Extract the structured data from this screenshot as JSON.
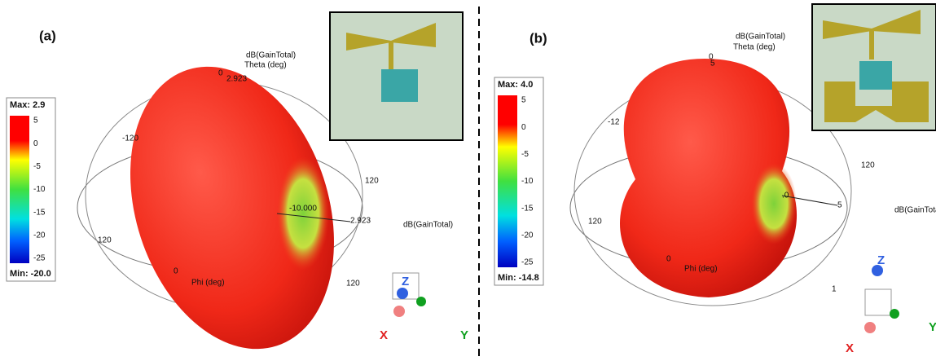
{
  "panels": [
    {
      "label": "(a)",
      "legend": {
        "max": "Max: 2.9",
        "ticks": [
          "5",
          "0",
          "-5",
          "-10",
          "-15",
          "-20",
          "-25"
        ],
        "min": "Min: -20.0"
      },
      "labels": [
        "dB(GainTotal)",
        "Theta (deg)",
        "0",
        "2.923",
        "-120",
        "120",
        "-10.000",
        "2.923",
        "dB(GainTotal)",
        "120",
        "120",
        "0",
        "Phi (deg)",
        "Z",
        "Y",
        "X"
      ]
    },
    {
      "label": "(b)",
      "legend": {
        "max": "Max: 4.0",
        "ticks": [
          "5",
          "0",
          "-5",
          "-10",
          "-15",
          "-20",
          "-25"
        ],
        "min": "Min: -14.8"
      },
      "labels": [
        "dB(GainTotal)",
        "Theta (deg)",
        "0",
        "5",
        "-12",
        "120",
        "120",
        ".0",
        "5",
        "dB(GainTotal)",
        "0",
        "Phi (deg)",
        "1",
        "Z",
        "Y",
        "X"
      ]
    }
  ]
}
